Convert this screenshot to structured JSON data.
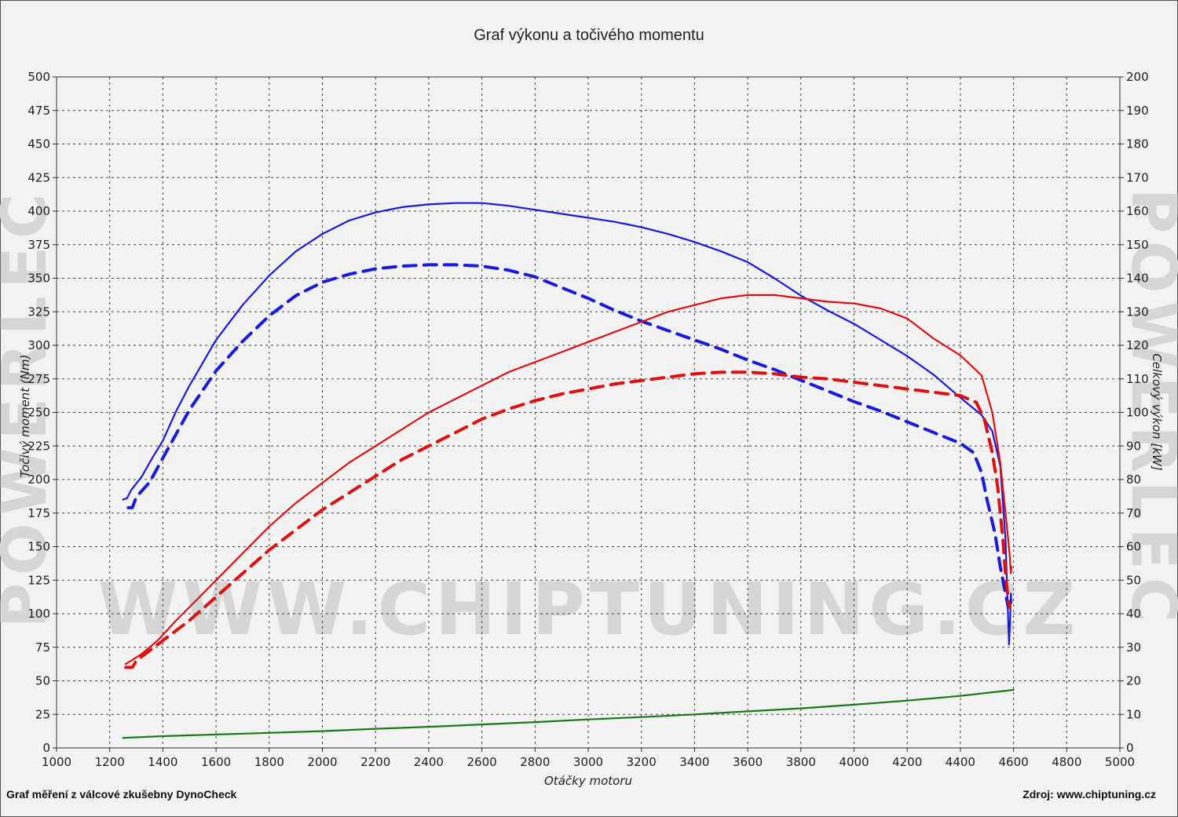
{
  "title": "Graf výkonu a točivého momentu",
  "footer": {
    "left": "Graf měření z válcové zkušebny DynoCheck",
    "right": "Zdroj: www.chiptuning.cz"
  },
  "watermark": {
    "url": "WWW.CHIPTUNING.CZ",
    "side": "POWERLEC"
  },
  "chart_data": {
    "type": "line",
    "title": "Graf výkonu a točivého momentu",
    "xlabel": "Otáčky motoru",
    "ylabel_left": "Točivý moment (Nm)",
    "ylabel_right": "Celkový výkon [kW]",
    "xlim": [
      1000,
      5000
    ],
    "x_ticks": [
      1000,
      1200,
      1400,
      1600,
      1800,
      2000,
      2200,
      2400,
      2600,
      2800,
      3000,
      3200,
      3400,
      3600,
      3800,
      4000,
      4200,
      4400,
      4600,
      4800,
      5000
    ],
    "ylim_left": [
      0,
      500
    ],
    "y_ticks_left": [
      0,
      25,
      50,
      75,
      100,
      125,
      150,
      175,
      200,
      225,
      250,
      275,
      300,
      325,
      350,
      375,
      400,
      425,
      450,
      475,
      500
    ],
    "ylim_right": [
      0,
      200
    ],
    "y_ticks_right": [
      0,
      10,
      20,
      30,
      40,
      50,
      60,
      70,
      80,
      90,
      100,
      110,
      120,
      130,
      140,
      150,
      160,
      170,
      180,
      190,
      200
    ],
    "grid": true,
    "colors": {
      "torque": "#1a1adc",
      "power": "#e01010",
      "loss": "#1a7a1a"
    },
    "series": [
      {
        "axis": "left",
        "color": "#1a1adc",
        "style": "solid",
        "points": [
          [
            1250,
            185
          ],
          [
            1265,
            186
          ],
          [
            1280,
            192
          ],
          [
            1320,
            202
          ],
          [
            1360,
            216
          ],
          [
            1400,
            229
          ],
          [
            1450,
            251
          ],
          [
            1500,
            270
          ],
          [
            1600,
            304
          ],
          [
            1700,
            330
          ],
          [
            1800,
            352
          ],
          [
            1900,
            370
          ],
          [
            2000,
            383
          ],
          [
            2100,
            393
          ],
          [
            2200,
            399
          ],
          [
            2300,
            403
          ],
          [
            2400,
            405
          ],
          [
            2500,
            406
          ],
          [
            2600,
            406
          ],
          [
            2700,
            404
          ],
          [
            2800,
            401
          ],
          [
            2900,
            398
          ],
          [
            3000,
            395
          ],
          [
            3100,
            392
          ],
          [
            3200,
            388
          ],
          [
            3300,
            383
          ],
          [
            3400,
            377
          ],
          [
            3500,
            370
          ],
          [
            3600,
            362
          ],
          [
            3700,
            350
          ],
          [
            3800,
            337
          ],
          [
            3900,
            326
          ],
          [
            4000,
            316
          ],
          [
            4100,
            304
          ],
          [
            4200,
            292
          ],
          [
            4300,
            278
          ],
          [
            4400,
            261
          ],
          [
            4480,
            248
          ],
          [
            4520,
            236
          ],
          [
            4550,
            210
          ],
          [
            4570,
            155
          ],
          [
            4580,
            95
          ],
          [
            4583,
            77
          ],
          [
            4588,
            100
          ],
          [
            4590,
            115
          ],
          [
            4592,
            108
          ]
        ]
      },
      {
        "axis": "left",
        "color": "#1a1adc",
        "style": "dashed",
        "points": [
          [
            1270,
            179
          ],
          [
            1285,
            179
          ],
          [
            1300,
            187
          ],
          [
            1350,
            198
          ],
          [
            1400,
            216
          ],
          [
            1500,
            252
          ],
          [
            1600,
            281
          ],
          [
            1700,
            303
          ],
          [
            1800,
            322
          ],
          [
            1900,
            337
          ],
          [
            2000,
            347
          ],
          [
            2100,
            353
          ],
          [
            2200,
            357
          ],
          [
            2300,
            359
          ],
          [
            2400,
            360
          ],
          [
            2500,
            360
          ],
          [
            2600,
            359
          ],
          [
            2700,
            356
          ],
          [
            2800,
            351
          ],
          [
            2900,
            343
          ],
          [
            3000,
            335
          ],
          [
            3100,
            326
          ],
          [
            3200,
            318
          ],
          [
            3300,
            311
          ],
          [
            3400,
            304
          ],
          [
            3500,
            297
          ],
          [
            3600,
            289
          ],
          [
            3700,
            282
          ],
          [
            3800,
            274
          ],
          [
            3900,
            266
          ],
          [
            4000,
            258
          ],
          [
            4100,
            251
          ],
          [
            4200,
            243
          ],
          [
            4300,
            235
          ],
          [
            4400,
            227
          ],
          [
            4450,
            220
          ],
          [
            4480,
            205
          ],
          [
            4500,
            185
          ],
          [
            4530,
            160
          ],
          [
            4550,
            135
          ],
          [
            4570,
            115
          ],
          [
            4580,
            105
          ]
        ]
      },
      {
        "axis": "right",
        "color": "#e01010",
        "style": "solid",
        "points": [
          [
            1260,
            25
          ],
          [
            1280,
            26
          ],
          [
            1320,
            28
          ],
          [
            1380,
            32
          ],
          [
            1450,
            38
          ],
          [
            1500,
            42
          ],
          [
            1600,
            50
          ],
          [
            1700,
            58
          ],
          [
            1800,
            66
          ],
          [
            1900,
            73
          ],
          [
            2000,
            79
          ],
          [
            2100,
            85
          ],
          [
            2200,
            90
          ],
          [
            2300,
            95
          ],
          [
            2400,
            100
          ],
          [
            2500,
            104
          ],
          [
            2600,
            108
          ],
          [
            2700,
            112
          ],
          [
            2800,
            115
          ],
          [
            2900,
            118
          ],
          [
            3000,
            121
          ],
          [
            3100,
            124
          ],
          [
            3200,
            127
          ],
          [
            3300,
            130
          ],
          [
            3400,
            132
          ],
          [
            3500,
            134
          ],
          [
            3600,
            135
          ],
          [
            3700,
            135
          ],
          [
            3800,
            134
          ],
          [
            3900,
            133
          ],
          [
            4000,
            132.5
          ],
          [
            4100,
            131
          ],
          [
            4200,
            128
          ],
          [
            4300,
            122
          ],
          [
            4400,
            117
          ],
          [
            4480,
            111
          ],
          [
            4520,
            100
          ],
          [
            4550,
            85
          ],
          [
            4570,
            70
          ],
          [
            4585,
            58
          ],
          [
            4590,
            52
          ],
          [
            4592,
            54
          ]
        ]
      },
      {
        "axis": "right",
        "color": "#e01010",
        "style": "dashed",
        "points": [
          [
            1260,
            24
          ],
          [
            1285,
            24
          ],
          [
            1300,
            26
          ],
          [
            1350,
            29
          ],
          [
            1400,
            32
          ],
          [
            1500,
            38
          ],
          [
            1600,
            45
          ],
          [
            1700,
            52
          ],
          [
            1800,
            59
          ],
          [
            1900,
            65
          ],
          [
            2000,
            71
          ],
          [
            2100,
            76
          ],
          [
            2200,
            81
          ],
          [
            2300,
            86
          ],
          [
            2400,
            90
          ],
          [
            2500,
            94
          ],
          [
            2600,
            98
          ],
          [
            2700,
            101
          ],
          [
            2800,
            103.5
          ],
          [
            2900,
            105.5
          ],
          [
            3000,
            107
          ],
          [
            3100,
            108.5
          ],
          [
            3200,
            109.5
          ],
          [
            3300,
            110.5
          ],
          [
            3400,
            111.5
          ],
          [
            3500,
            112
          ],
          [
            3600,
            112
          ],
          [
            3700,
            111.5
          ],
          [
            3800,
            110.5
          ],
          [
            3900,
            110
          ],
          [
            4000,
            109
          ],
          [
            4100,
            108
          ],
          [
            4200,
            107
          ],
          [
            4300,
            106
          ],
          [
            4400,
            105
          ],
          [
            4460,
            103
          ],
          [
            4490,
            98
          ],
          [
            4520,
            88
          ],
          [
            4540,
            78
          ],
          [
            4560,
            62
          ],
          [
            4570,
            52
          ],
          [
            4580,
            44
          ],
          [
            4585,
            42
          ]
        ]
      },
      {
        "axis": "right",
        "color": "#1a7a1a",
        "style": "solid",
        "points": [
          [
            1250,
            3
          ],
          [
            1400,
            3.5
          ],
          [
            1600,
            4
          ],
          [
            1800,
            4.5
          ],
          [
            2000,
            5
          ],
          [
            2200,
            5.7
          ],
          [
            2400,
            6.3
          ],
          [
            2600,
            7
          ],
          [
            2800,
            7.7
          ],
          [
            3000,
            8.5
          ],
          [
            3200,
            9.2
          ],
          [
            3400,
            10
          ],
          [
            3600,
            10.9
          ],
          [
            3800,
            11.8
          ],
          [
            4000,
            12.9
          ],
          [
            4200,
            14.1
          ],
          [
            4400,
            15.5
          ],
          [
            4600,
            17.3
          ]
        ]
      }
    ]
  }
}
